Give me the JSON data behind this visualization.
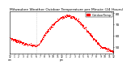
{
  "title": "Milwaukee Weather Outdoor Temperature per Minute (24 Hours)",
  "title_fontsize": 3.2,
  "bg_color": "#ffffff",
  "line_color": "#ff0000",
  "marker": ",",
  "markersize": 1.0,
  "linestyle": "none",
  "ylim": [
    44,
    82
  ],
  "xlim": [
    0,
    1440
  ],
  "yticks": [
    50,
    60,
    70,
    80
  ],
  "ytick_fontsize": 3.0,
  "xtick_fontsize": 2.2,
  "legend_label": "OutdoorTemp",
  "legend_color": "#ff0000",
  "vline_x": 370,
  "vline_style": "dotted",
  "vline_color": "#999999",
  "xtick_positions": [
    0,
    60,
    120,
    180,
    240,
    300,
    360,
    420,
    480,
    540,
    600,
    660,
    720,
    780,
    840,
    900,
    960,
    1020,
    1080,
    1140,
    1200,
    1260,
    1320,
    1380,
    1440
  ],
  "xtick_labels": [
    "12\nam",
    "1",
    "2",
    "3",
    "4",
    "5",
    "6",
    "7",
    "8",
    "9",
    "10",
    "11",
    "12\npm",
    "1",
    "2",
    "3",
    "4",
    "5",
    "6",
    "7",
    "8",
    "9",
    "10",
    "11",
    "12"
  ],
  "temperature_data": [
    [
      0,
      57
    ],
    [
      20,
      56.5
    ],
    [
      40,
      56
    ],
    [
      60,
      55.5
    ],
    [
      80,
      55
    ],
    [
      100,
      54.5
    ],
    [
      120,
      54
    ],
    [
      140,
      53.5
    ],
    [
      160,
      53
    ],
    [
      180,
      52.5
    ],
    [
      200,
      52
    ],
    [
      220,
      51.8
    ],
    [
      240,
      51.5
    ],
    [
      260,
      51.2
    ],
    [
      280,
      51
    ],
    [
      300,
      50.8
    ],
    [
      320,
      50.5
    ],
    [
      340,
      50.3
    ],
    [
      360,
      50
    ],
    [
      380,
      50.5
    ],
    [
      400,
      52
    ],
    [
      420,
      54
    ],
    [
      440,
      56
    ],
    [
      460,
      58
    ],
    [
      480,
      60
    ],
    [
      500,
      62
    ],
    [
      520,
      63.5
    ],
    [
      540,
      65
    ],
    [
      560,
      66.5
    ],
    [
      580,
      68
    ],
    [
      600,
      69.5
    ],
    [
      620,
      71
    ],
    [
      640,
      72
    ],
    [
      660,
      73
    ],
    [
      680,
      74
    ],
    [
      700,
      75
    ],
    [
      720,
      75.5
    ],
    [
      740,
      76
    ],
    [
      760,
      76.5
    ],
    [
      780,
      77
    ],
    [
      800,
      77
    ],
    [
      820,
      76.8
    ],
    [
      840,
      76.5
    ],
    [
      860,
      76
    ],
    [
      880,
      75.5
    ],
    [
      900,
      75
    ],
    [
      920,
      74
    ],
    [
      940,
      73
    ],
    [
      960,
      72
    ],
    [
      980,
      70.5
    ],
    [
      1000,
      69
    ],
    [
      1020,
      67.5
    ],
    [
      1040,
      66
    ],
    [
      1060,
      64.5
    ],
    [
      1080,
      63
    ],
    [
      1100,
      61.5
    ],
    [
      1120,
      60
    ],
    [
      1140,
      58.5
    ],
    [
      1160,
      57
    ],
    [
      1180,
      55.5
    ],
    [
      1200,
      54
    ],
    [
      1220,
      52.5
    ],
    [
      1240,
      51
    ],
    [
      1260,
      50
    ],
    [
      1280,
      49
    ],
    [
      1300,
      48.5
    ],
    [
      1320,
      48
    ],
    [
      1340,
      47.5
    ],
    [
      1360,
      47
    ],
    [
      1380,
      46.5
    ],
    [
      1400,
      46
    ],
    [
      1420,
      45.5
    ],
    [
      1440,
      45
    ]
  ]
}
